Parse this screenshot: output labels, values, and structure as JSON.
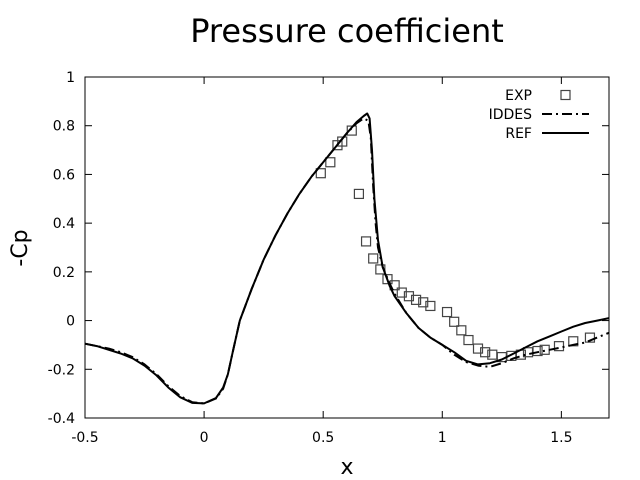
{
  "chart_data": {
    "type": "line",
    "title": "Pressure coefficient",
    "xlabel": "x",
    "ylabel": "-Cp",
    "xlim": [
      -0.5,
      1.7
    ],
    "ylim": [
      -0.4,
      1.0
    ],
    "xticks": [
      -0.5,
      0,
      0.5,
      1,
      1.5
    ],
    "xtick_labels": [
      "-0.5",
      "0",
      "0.5",
      "1",
      "1.5"
    ],
    "yticks": [
      -0.4,
      -0.2,
      0,
      0.2,
      0.4,
      0.6,
      0.8,
      1
    ],
    "ytick_labels": [
      "-0.4",
      "-0.2",
      "0",
      "0.2",
      "0.4",
      "0.6",
      "0.8",
      "1"
    ],
    "grid": false,
    "legend": "top-right",
    "series": [
      {
        "name": "EXP",
        "style": "markers-square",
        "x": [
          0.49,
          0.53,
          0.56,
          0.58,
          0.62,
          0.65,
          0.68,
          0.71,
          0.74,
          0.77,
          0.8,
          0.83,
          0.86,
          0.89,
          0.92,
          0.95,
          1.02,
          1.05,
          1.08,
          1.11,
          1.15,
          1.18,
          1.21,
          1.25,
          1.29,
          1.33,
          1.36,
          1.4,
          1.43,
          1.49,
          1.55,
          1.62
        ],
        "y": [
          0.605,
          0.65,
          0.72,
          0.735,
          0.78,
          0.52,
          0.325,
          0.255,
          0.21,
          0.17,
          0.145,
          0.115,
          0.1,
          0.085,
          0.075,
          0.06,
          0.035,
          -0.005,
          -0.04,
          -0.08,
          -0.115,
          -0.13,
          -0.14,
          -0.15,
          -0.145,
          -0.14,
          -0.13,
          -0.125,
          -0.12,
          -0.105,
          -0.085,
          -0.07
        ]
      },
      {
        "name": "IDDES",
        "style": "dash-dot",
        "x": [
          -0.5,
          -0.45,
          -0.4,
          -0.35,
          -0.3,
          -0.25,
          -0.2,
          -0.15,
          -0.1,
          -0.05,
          0.0,
          0.05,
          0.08,
          0.1,
          0.12,
          0.15,
          0.2,
          0.25,
          0.3,
          0.35,
          0.4,
          0.45,
          0.5,
          0.55,
          0.6,
          0.64,
          0.67,
          0.69,
          0.7,
          0.71,
          0.72,
          0.73,
          0.75,
          0.78,
          0.8,
          0.85,
          0.9,
          0.95,
          1.0,
          1.05,
          1.1,
          1.15,
          1.2,
          1.25,
          1.3,
          1.35,
          1.4,
          1.45,
          1.5,
          1.55,
          1.6,
          1.65,
          1.7
        ],
        "y": [
          -0.095,
          -0.105,
          -0.115,
          -0.13,
          -0.15,
          -0.18,
          -0.22,
          -0.27,
          -0.31,
          -0.335,
          -0.34,
          -0.32,
          -0.28,
          -0.22,
          -0.13,
          0.0,
          0.13,
          0.25,
          0.35,
          0.44,
          0.52,
          0.59,
          0.65,
          0.71,
          0.77,
          0.81,
          0.83,
          0.82,
          0.75,
          0.55,
          0.4,
          0.3,
          0.22,
          0.15,
          0.11,
          0.03,
          -0.03,
          -0.07,
          -0.1,
          -0.14,
          -0.17,
          -0.185,
          -0.19,
          -0.175,
          -0.155,
          -0.14,
          -0.13,
          -0.12,
          -0.11,
          -0.1,
          -0.09,
          -0.07,
          -0.05
        ]
      },
      {
        "name": "REF",
        "style": "solid",
        "x": [
          -0.5,
          -0.45,
          -0.4,
          -0.35,
          -0.3,
          -0.25,
          -0.2,
          -0.15,
          -0.1,
          -0.05,
          0.0,
          0.05,
          0.08,
          0.1,
          0.12,
          0.15,
          0.2,
          0.25,
          0.3,
          0.35,
          0.4,
          0.45,
          0.5,
          0.55,
          0.6,
          0.64,
          0.67,
          0.685,
          0.695,
          0.705,
          0.715,
          0.73,
          0.75,
          0.78,
          0.8,
          0.85,
          0.9,
          0.95,
          1.0,
          1.05,
          1.1,
          1.15,
          1.2,
          1.25,
          1.3,
          1.35,
          1.4,
          1.45,
          1.5,
          1.55,
          1.6,
          1.65,
          1.7
        ],
        "y": [
          -0.095,
          -0.105,
          -0.12,
          -0.135,
          -0.155,
          -0.185,
          -0.225,
          -0.275,
          -0.315,
          -0.338,
          -0.34,
          -0.318,
          -0.275,
          -0.22,
          -0.13,
          0.0,
          0.13,
          0.25,
          0.35,
          0.44,
          0.52,
          0.59,
          0.65,
          0.71,
          0.77,
          0.815,
          0.84,
          0.85,
          0.83,
          0.7,
          0.5,
          0.33,
          0.22,
          0.14,
          0.1,
          0.03,
          -0.03,
          -0.07,
          -0.1,
          -0.13,
          -0.165,
          -0.18,
          -0.175,
          -0.16,
          -0.135,
          -0.11,
          -0.085,
          -0.065,
          -0.045,
          -0.025,
          -0.01,
          0.0,
          0.01
        ]
      }
    ]
  }
}
